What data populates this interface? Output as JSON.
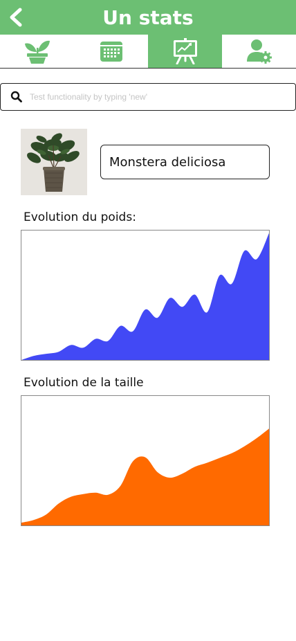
{
  "header": {
    "title": "Un stats",
    "background": "#6cbf73",
    "back_icon": "chevron-left-icon"
  },
  "tabs": [
    {
      "icon": "plant-pot-icon",
      "active": false
    },
    {
      "icon": "calendar-icon",
      "active": false
    },
    {
      "icon": "presentation-chart-icon",
      "active": true
    },
    {
      "icon": "user-settings-icon",
      "active": false
    }
  ],
  "search": {
    "value": "",
    "placeholder": "Test functionality by typing 'new'"
  },
  "plant": {
    "name": "Monstera deliciosa",
    "photo": "monstera-plant-photo"
  },
  "chart_data": [
    {
      "type": "area",
      "title": "Evolution du poids:",
      "color": "#4249f5",
      "x": [
        0,
        5,
        10,
        15,
        20,
        25,
        30,
        35,
        40,
        45,
        50,
        55,
        60,
        65,
        70,
        75,
        80,
        85,
        90,
        95,
        100
      ],
      "values": [
        0,
        6,
        9,
        12,
        22,
        18,
        31,
        28,
        50,
        42,
        74,
        62,
        91,
        78,
        96,
        70,
        124,
        112,
        160,
        148,
        186
      ],
      "ylim": [
        0,
        190
      ],
      "grid": false
    },
    {
      "type": "area",
      "title": "Evolution de la taille",
      "color": "#ff6a00",
      "x": [
        0,
        5,
        10,
        15,
        20,
        25,
        30,
        35,
        40,
        45,
        50,
        55,
        60,
        65,
        70,
        75,
        80,
        85,
        90,
        95,
        100
      ],
      "values": [
        4,
        8,
        16,
        32,
        42,
        46,
        48,
        45,
        58,
        94,
        100,
        78,
        70,
        76,
        86,
        92,
        99,
        106,
        116,
        128,
        142
      ],
      "ylim": [
        0,
        190
      ],
      "grid": false
    }
  ]
}
